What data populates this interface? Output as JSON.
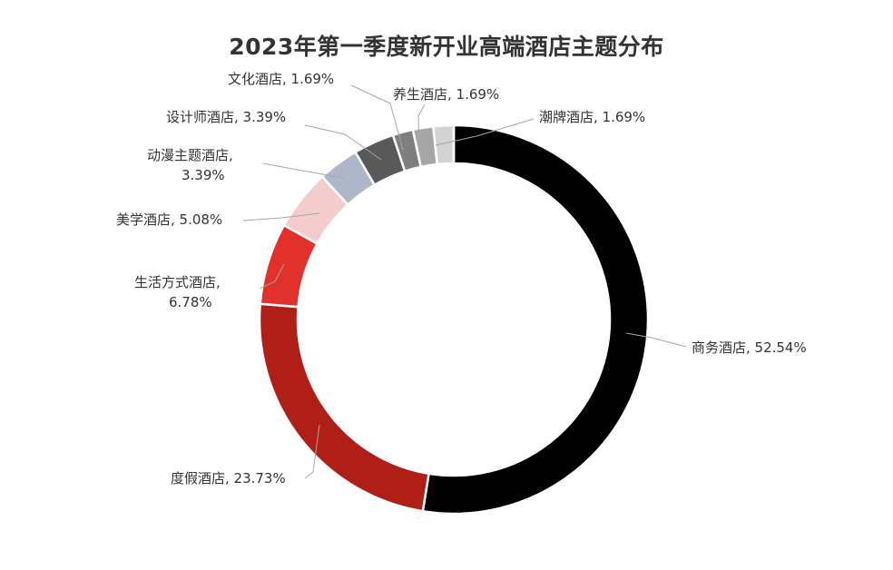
{
  "chart_data": {
    "type": "pie",
    "title": "2023年第一季度新开业高端酒店主题分布",
    "slices": [
      {
        "name": "商务酒店",
        "value": 52.54,
        "label": "商务酒店, 52.54%",
        "color": "#000000"
      },
      {
        "name": "度假酒店",
        "value": 23.73,
        "label": "度假酒店, 23.73%",
        "color": "#b01f17"
      },
      {
        "name": "生活方式酒店",
        "value": 6.78,
        "label": "生活方式酒店, 6.78%",
        "color": "#e2302a"
      },
      {
        "name": "美学酒店",
        "value": 5.08,
        "label": "美学酒店, 5.08%",
        "color": "#f5cccc"
      },
      {
        "name": "动漫主题酒店",
        "value": 3.39,
        "label": "动漫主题酒店, 3.39%",
        "color": "#aeb7c9"
      },
      {
        "name": "设计师酒店",
        "value": 3.39,
        "label": "设计师酒店, 3.39%",
        "color": "#595959"
      },
      {
        "name": "文化酒店",
        "value": 1.69,
        "label": "文化酒店, 1.69%",
        "color": "#7f7f7f"
      },
      {
        "name": "养生酒店",
        "value": 1.69,
        "label": "养生酒店, 1.69%",
        "color": "#a6a6a6"
      },
      {
        "name": "潮牌酒店",
        "value": 1.69,
        "label": "潮牌酒店, 1.69%",
        "color": "#d3d3d3"
      }
    ],
    "legend": "none"
  }
}
